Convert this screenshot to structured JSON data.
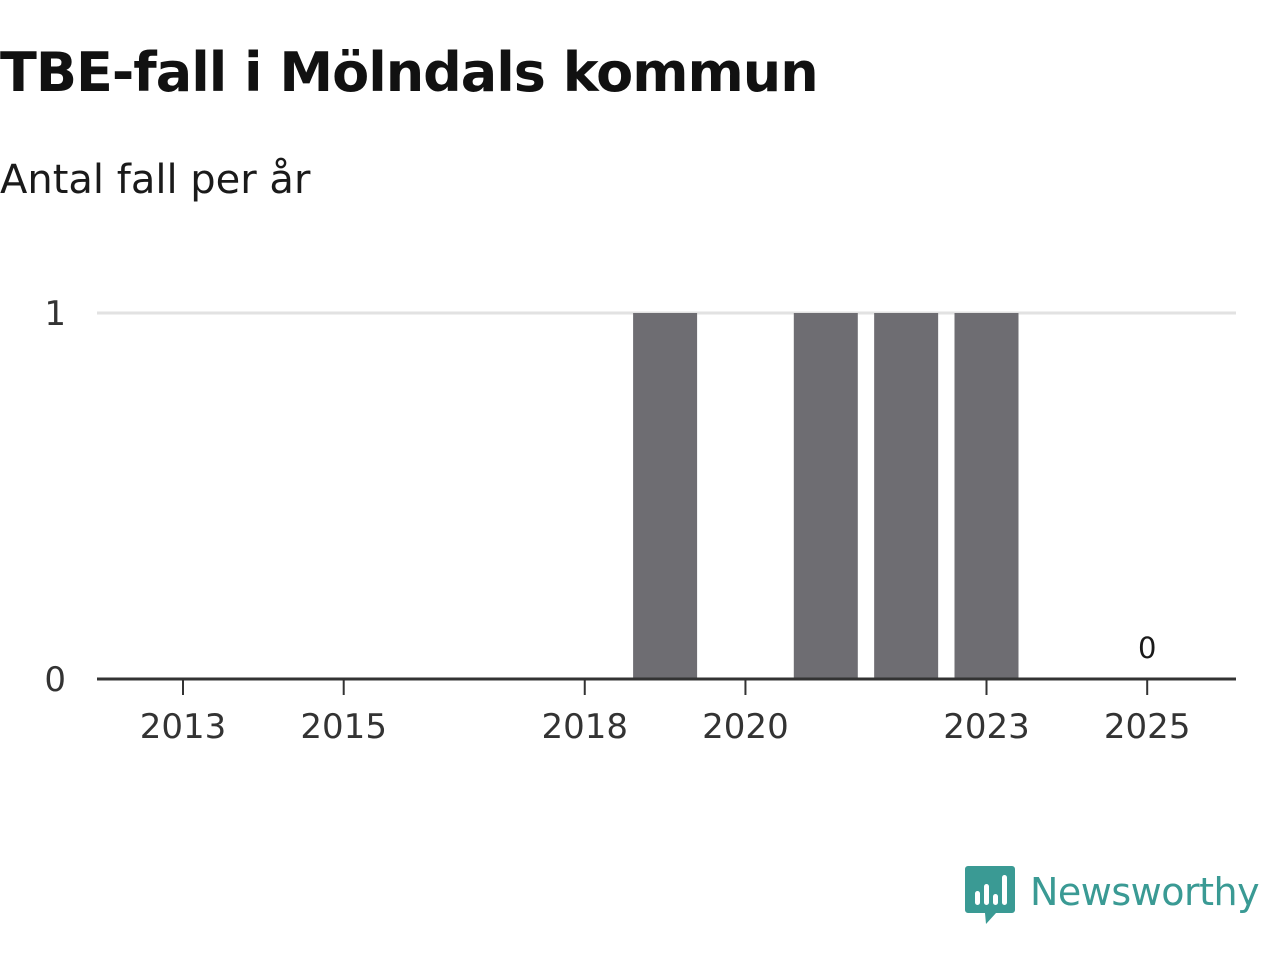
{
  "header": {
    "title": "TBE-fall i Mölndals kommun",
    "subtitle": "Antal fall per år"
  },
  "brand": {
    "name": "Newsworthy",
    "icon": "newsworthy-logo-icon",
    "color": "#3a9a94"
  },
  "colors": {
    "bar": "#6e6d72",
    "gridline": "#e2e2e2",
    "axis": "#333333"
  },
  "chart_data": {
    "type": "bar",
    "title": "TBE-fall i Mölndals kommun",
    "subtitle": "Antal fall per år",
    "xlabel": "",
    "ylabel": "",
    "categories": [
      "2013",
      "2014",
      "2015",
      "2016",
      "2017",
      "2018",
      "2019",
      "2020",
      "2021",
      "2022",
      "2023",
      "2024",
      "2025"
    ],
    "values": [
      0,
      0,
      0,
      0,
      0,
      0,
      1,
      0,
      1,
      1,
      1,
      0,
      0
    ],
    "x_tick_labels": [
      "2013",
      "2015",
      "2018",
      "2020",
      "2023",
      "2025"
    ],
    "y_ticks": [
      0,
      1
    ],
    "ylim": [
      0,
      1
    ],
    "grid": "horizontal",
    "legend": "none",
    "data_labels": [
      {
        "category": "2025",
        "text": "0"
      }
    ]
  }
}
